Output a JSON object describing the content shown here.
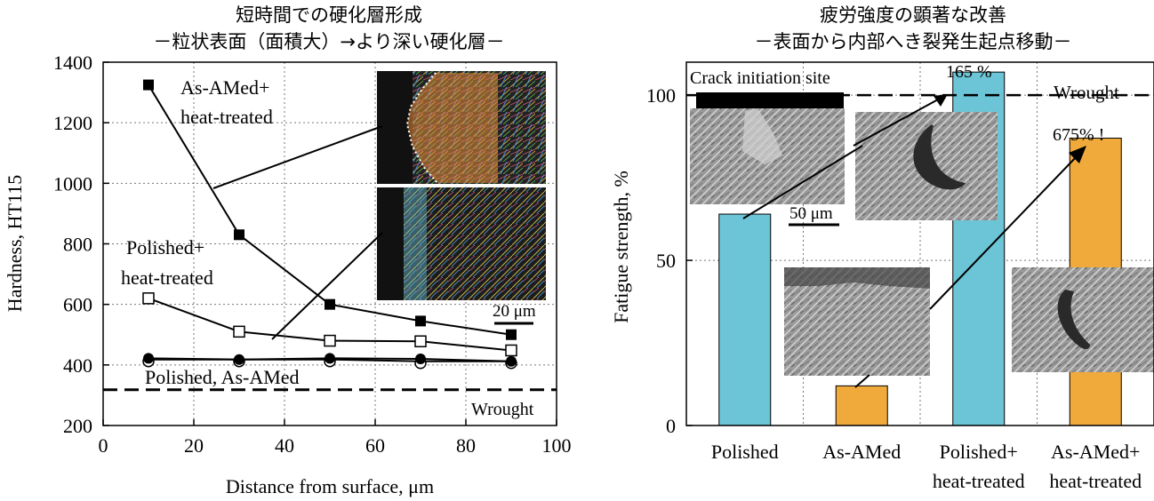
{
  "chart_data": [
    {
      "type": "line",
      "title": "短時間での硬化層形成",
      "subtitle": "－粒状表面（面積大）→より深い硬化層－",
      "xlabel": "Distance from surface, μm",
      "ylabel": "Hardness, HT115",
      "xlim": [
        0,
        100
      ],
      "ylim": [
        200,
        1400
      ],
      "xticks": [
        "0",
        "20",
        "40",
        "60",
        "80",
        "100"
      ],
      "yticks": [
        "200",
        "400",
        "600",
        "800",
        "1000",
        "1200",
        "1400"
      ],
      "grid": true,
      "series": [
        {
          "name": "As-AMed+heat-treated",
          "label_lines": [
            "As-AMed+",
            "heat-treated"
          ],
          "marker": "filled-square",
          "x": [
            10,
            30,
            50,
            70,
            90
          ],
          "y": [
            1325,
            830,
            600,
            545,
            500
          ]
        },
        {
          "name": "Polished+heat-treated",
          "label_lines": [
            "Polished+",
            "heat-treated"
          ],
          "marker": "open-square",
          "x": [
            10,
            30,
            50,
            70,
            90
          ],
          "y": [
            620,
            510,
            480,
            478,
            448
          ]
        },
        {
          "name": "Polished",
          "marker": "open-circle",
          "x": [
            10,
            30,
            50,
            70,
            90
          ],
          "y": [
            418,
            418,
            418,
            412,
            412
          ]
        },
        {
          "name": "As-AMed",
          "marker": "filled-circle",
          "x": [
            10,
            30,
            50,
            70,
            90
          ],
          "y": [
            422,
            418,
            422,
            420,
            412
          ]
        }
      ],
      "bottom_series_label": "Polished, As-AMed",
      "reference": {
        "label": "Wrought",
        "y": 318
      },
      "inset_scalebar": "20 μm"
    },
    {
      "type": "bar",
      "title": "疲労強度の顕著な改善",
      "subtitle": "－表面から内部へき裂発生起点移動－",
      "ylabel": "Fatigue strength, %",
      "ylim": [
        0,
        110
      ],
      "yticks": [
        "0",
        "50",
        "100"
      ],
      "grid": true,
      "categories": [
        {
          "line1": "Polished",
          "line2": ""
        },
        {
          "line1": "As-AMed",
          "line2": ""
        },
        {
          "line1": "Polished+",
          "line2": "heat-treated"
        },
        {
          "line1": "As-AMed+",
          "line2": "heat-treated"
        }
      ],
      "values": [
        64,
        12,
        107,
        87
      ],
      "bar_colors": [
        "#6cc5d6",
        "#f0aa3c",
        "#6cc5d6",
        "#f0aa3c"
      ],
      "reference": {
        "label": "Wrought",
        "y": 100
      },
      "annotations": [
        "Crack initiation site",
        "165 %",
        "675% !",
        "50 μm"
      ]
    }
  ],
  "colors": {
    "cyan": "#6cc5d6",
    "orange": "#f0aa3c"
  }
}
